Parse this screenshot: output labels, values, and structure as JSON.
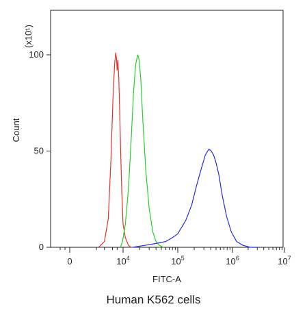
{
  "chart_data": {
    "type": "line",
    "title": "",
    "xlabel": "FITC-A",
    "ylabel": "Count",
    "y_multiplier": "(x10¹)",
    "caption": "Human K562 cells",
    "x_scale": "biexponential",
    "ylim": [
      0,
      120
    ],
    "x_ticks": [
      {
        "value": 0,
        "label": "0"
      },
      {
        "value": 10000,
        "label": "10",
        "exp": "4"
      },
      {
        "value": 100000,
        "label": "10",
        "exp": "5"
      },
      {
        "value": 1000000,
        "label": "10",
        "exp": "6"
      },
      {
        "value": 10000000,
        "label": "10",
        "exp": "7"
      }
    ],
    "y_ticks": [
      {
        "value": 0,
        "label": "0"
      },
      {
        "value": 50,
        "label": "50"
      },
      {
        "value": 100,
        "label": "100"
      }
    ],
    "grid": false,
    "legend": "none",
    "series": [
      {
        "color": "#e8302a",
        "x": [
          1200,
          2000,
          2800,
          3500,
          4200,
          4800,
          5300,
          5700,
          6000,
          6400,
          6900,
          7500,
          8200,
          9000,
          10000,
          11000,
          12500,
          14000
        ],
        "y": [
          0,
          3,
          15,
          45,
          78,
          95,
          101,
          98,
          92,
          97,
          88,
          70,
          48,
          28,
          12,
          5,
          1,
          0
        ]
      },
      {
        "color": "#27d02a",
        "x": [
          8000,
          9500,
          11000,
          12500,
          14000,
          15500,
          17000,
          18500,
          19500,
          21000,
          23000,
          26000,
          30000,
          35000,
          40000,
          46000,
          55000
        ],
        "y": [
          0,
          3,
          12,
          30,
          55,
          80,
          95,
          100,
          98,
          88,
          66,
          40,
          20,
          8,
          3,
          1,
          0
        ]
      },
      {
        "color": "#2a2ad8",
        "x": [
          15000,
          25000,
          40000,
          60000,
          80000,
          100000,
          140000,
          180000,
          220000,
          270000,
          320000,
          370000,
          410000,
          450000,
          500000,
          560000,
          650000,
          780000,
          950000,
          1200000,
          1600000,
          2200000,
          3000000
        ],
        "y": [
          0,
          1,
          2,
          3,
          5,
          7,
          14,
          22,
          32,
          41,
          48,
          51,
          50,
          48,
          44,
          38,
          27,
          16,
          8,
          3,
          1,
          0,
          0
        ]
      }
    ]
  }
}
